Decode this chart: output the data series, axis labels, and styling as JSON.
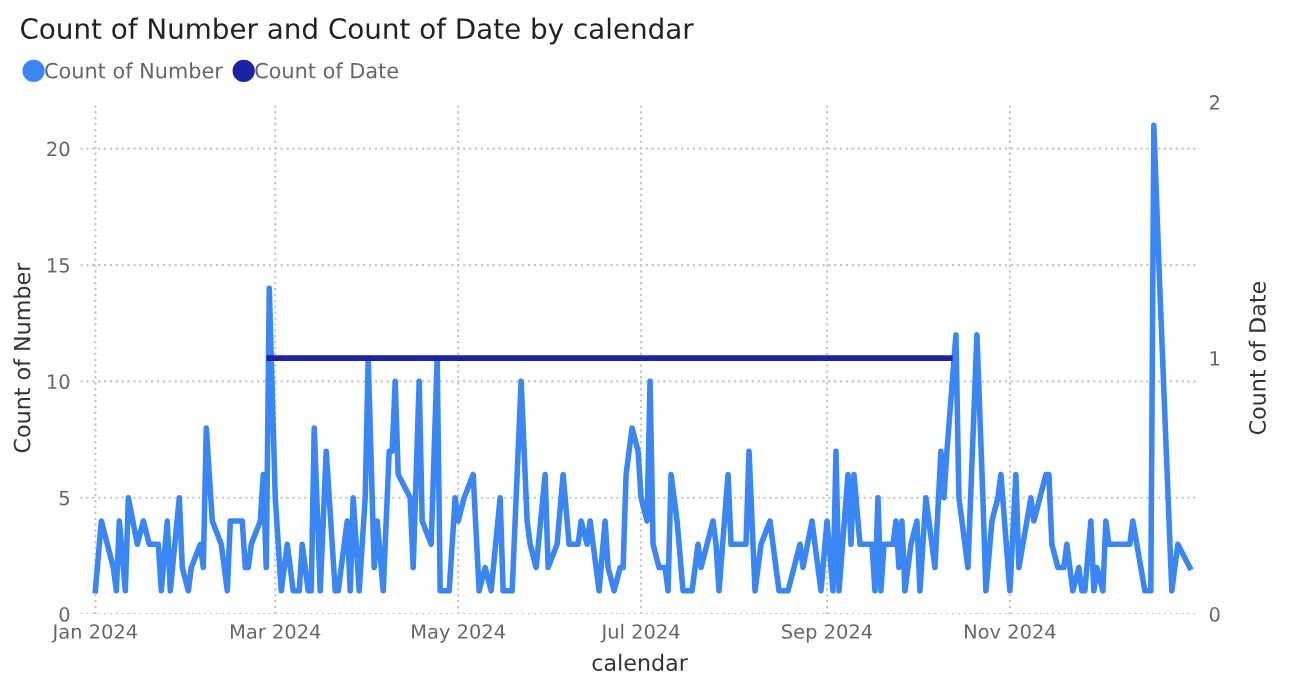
{
  "chart_data": {
    "type": "line",
    "title": "Count of Number and Count of Date by calendar",
    "xlabel": "calendar",
    "ylabel": "Count of Number",
    "y2label": "Count of Date",
    "series": [
      {
        "name": "Count of Number",
        "color": "#3a86f5",
        "x": [
          "2024-01-01",
          "2024-01-03",
          "2024-01-07",
          "2024-01-08",
          "2024-01-09",
          "2024-01-11",
          "2024-01-12",
          "2024-01-15",
          "2024-01-17",
          "2024-01-19",
          "2024-01-22",
          "2024-01-23",
          "2024-01-25",
          "2024-01-26",
          "2024-01-29",
          "2024-01-30",
          "2024-02-01",
          "2024-02-02",
          "2024-02-05",
          "2024-02-06",
          "2024-02-07",
          "2024-02-09",
          "2024-02-12",
          "2024-02-14",
          "2024-02-15",
          "2024-02-19",
          "2024-02-20",
          "2024-02-21",
          "2024-02-22",
          "2024-02-25",
          "2024-02-26",
          "2024-02-27",
          "2024-02-28",
          "2024-03-01",
          "2024-03-03",
          "2024-03-05",
          "2024-03-07",
          "2024-03-09",
          "2024-03-10",
          "2024-03-12",
          "2024-03-13",
          "2024-03-14",
          "2024-03-16",
          "2024-03-18",
          "2024-03-21",
          "2024-03-22",
          "2024-03-25",
          "2024-03-26",
          "2024-03-27",
          "2024-03-29",
          "2024-03-31",
          "2024-04-01",
          "2024-04-03",
          "2024-04-04",
          "2024-04-06",
          "2024-04-08",
          "2024-04-09",
          "2024-04-10",
          "2024-04-11",
          "2024-04-15",
          "2024-04-16",
          "2024-04-18",
          "2024-04-19",
          "2024-04-22",
          "2024-04-24",
          "2024-04-25",
          "2024-04-28",
          "2024-04-30",
          "2024-05-01",
          "2024-05-03",
          "2024-05-06",
          "2024-05-08",
          "2024-05-10",
          "2024-05-12",
          "2024-05-15",
          "2024-05-16",
          "2024-05-19",
          "2024-05-22",
          "2024-05-24",
          "2024-05-25",
          "2024-05-27",
          "2024-05-30",
          "2024-05-31",
          "2024-06-03",
          "2024-06-05",
          "2024-06-07",
          "2024-06-10",
          "2024-06-11",
          "2024-06-13",
          "2024-06-14",
          "2024-06-17",
          "2024-06-19",
          "2024-06-20",
          "2024-06-22",
          "2024-06-24",
          "2024-06-25",
          "2024-06-26",
          "2024-06-28",
          "2024-06-30",
          "2024-07-01",
          "2024-07-03",
          "2024-07-04",
          "2024-07-05",
          "2024-07-07",
          "2024-07-09",
          "2024-07-10",
          "2024-07-11",
          "2024-07-13",
          "2024-07-15",
          "2024-07-18",
          "2024-07-20",
          "2024-07-21",
          "2024-07-23",
          "2024-07-25",
          "2024-07-26",
          "2024-07-27",
          "2024-07-30",
          "2024-07-31",
          "2024-08-05",
          "2024-08-06",
          "2024-08-08",
          "2024-08-10",
          "2024-08-13",
          "2024-08-16",
          "2024-08-19",
          "2024-08-23",
          "2024-08-24",
          "2024-08-27",
          "2024-08-30",
          "2024-09-01",
          "2024-09-03",
          "2024-09-04",
          "2024-09-05",
          "2024-09-08",
          "2024-09-09",
          "2024-09-10",
          "2024-09-12",
          "2024-09-16",
          "2024-09-17",
          "2024-09-18",
          "2024-09-19",
          "2024-09-20",
          "2024-09-23",
          "2024-09-24",
          "2024-09-25",
          "2024-09-26",
          "2024-09-27",
          "2024-09-29",
          "2024-10-01",
          "2024-10-02",
          "2024-10-04",
          "2024-10-06",
          "2024-10-07",
          "2024-10-09",
          "2024-10-10",
          "2024-10-11",
          "2024-10-14",
          "2024-10-15",
          "2024-10-17",
          "2024-10-18",
          "2024-10-21",
          "2024-10-23",
          "2024-10-24",
          "2024-10-26",
          "2024-10-28",
          "2024-10-29",
          "2024-11-01",
          "2024-11-03",
          "2024-11-04",
          "2024-11-08",
          "2024-11-09",
          "2024-11-11",
          "2024-11-13",
          "2024-11-14",
          "2024-11-15",
          "2024-11-17",
          "2024-11-19",
          "2024-11-20",
          "2024-11-22",
          "2024-11-24",
          "2024-11-25",
          "2024-11-26",
          "2024-11-28",
          "2024-11-29",
          "2024-11-30",
          "2024-12-02",
          "2024-12-03",
          "2024-12-04",
          "2024-12-11",
          "2024-12-12",
          "2024-12-16",
          "2024-12-18",
          "2024-12-19",
          "2024-12-21",
          "2024-12-25",
          "2024-12-27",
          "2024-12-31"
        ],
        "values": [
          1,
          4,
          2,
          1,
          4,
          1,
          5,
          3,
          4,
          3,
          3,
          1,
          4,
          1,
          5,
          2,
          1,
          2,
          3,
          2,
          8,
          4,
          3,
          1,
          4,
          4,
          2,
          2,
          3,
          4,
          6,
          2,
          14,
          5,
          1,
          3,
          1,
          1,
          3,
          1,
          1,
          8,
          1,
          7,
          1,
          1,
          4,
          1,
          5,
          1,
          5,
          11,
          2,
          4,
          1,
          7,
          7,
          10,
          6,
          5,
          2,
          10,
          4,
          3,
          11,
          1,
          1,
          5,
          4,
          5,
          6,
          1,
          2,
          1,
          5,
          1,
          1,
          10,
          4,
          3,
          2,
          6,
          2,
          3,
          6,
          3,
          3,
          4,
          3,
          4,
          1,
          4,
          2,
          1,
          2,
          2,
          6,
          8,
          7,
          5,
          4,
          10,
          3,
          2,
          2,
          1,
          6,
          4,
          1,
          1,
          3,
          2,
          3,
          4,
          3,
          1,
          6,
          3,
          3,
          7,
          1,
          3,
          4,
          1,
          1,
          3,
          2,
          4,
          1,
          4,
          1,
          7,
          1,
          6,
          3,
          6,
          3,
          3,
          1,
          5,
          1,
          3,
          3,
          4,
          2,
          4,
          1,
          3,
          4,
          1,
          5,
          3,
          2,
          7,
          5,
          7,
          12,
          5,
          3,
          2,
          12,
          5,
          1,
          4,
          5,
          6,
          1,
          6,
          2,
          5,
          4,
          5,
          6,
          6,
          3,
          2,
          2,
          3,
          1,
          2,
          1,
          1,
          4,
          1,
          2,
          1,
          4,
          3,
          3,
          4,
          1,
          1,
          21,
          14,
          1,
          3,
          2
        ]
      },
      {
        "name": "Count of Date",
        "color": "#1a24a0",
        "axis": "y2",
        "x": [
          "2024-02-28",
          "2024-10-12"
        ],
        "values": [
          1,
          1
        ]
      }
    ],
    "xlim": [
      "2023-12-27",
      "2025-01-03"
    ],
    "xticks": [
      {
        "value": "2024-01-01",
        "label": "Jan 2024"
      },
      {
        "value": "2024-03-01",
        "label": "Mar 2024"
      },
      {
        "value": "2024-05-01",
        "label": "May 2024"
      },
      {
        "value": "2024-07-01",
        "label": "Jul 2024"
      },
      {
        "value": "2024-09-01",
        "label": "Sep 2024"
      },
      {
        "value": "2024-11-01",
        "label": "Nov 2024"
      }
    ],
    "ylim": [
      0,
      22
    ],
    "yticks": [
      0,
      5,
      10,
      15,
      20
    ],
    "y2lim": [
      0,
      2
    ],
    "y2ticks": [
      0,
      1,
      2
    ],
    "grid": true,
    "legend": "top left",
    "marker": "none",
    "line_style": "solid"
  }
}
